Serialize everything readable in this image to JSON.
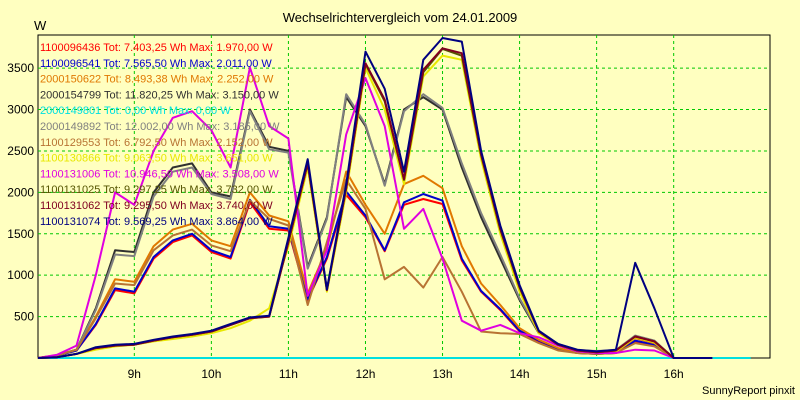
{
  "chart_data": {
    "type": "line",
    "title": "Wechselrichtervergleich vom 24.01.2009",
    "ylabel": "W",
    "xlabel": "",
    "credit": "SunnyReport pinxit",
    "grid": true,
    "legend_position": "top-left",
    "ylim": [
      0,
      3900
    ],
    "xlim": [
      7.75,
      17.25
    ],
    "yticks": [
      500,
      1000,
      1500,
      2000,
      2500,
      3000,
      3500
    ],
    "xticks": [
      9,
      10,
      11,
      12,
      13,
      14,
      15,
      16
    ],
    "xticklabels": [
      "9h",
      "10h",
      "11h",
      "12h",
      "13h",
      "14h",
      "15h",
      "16h"
    ],
    "x": [
      7.75,
      8.0,
      8.25,
      8.5,
      8.75,
      9.0,
      9.25,
      9.5,
      9.75,
      10.0,
      10.25,
      10.5,
      10.75,
      11.0,
      11.25,
      11.5,
      11.75,
      12.0,
      12.25,
      12.5,
      12.75,
      13.0,
      13.25,
      13.5,
      13.75,
      14.0,
      14.25,
      14.5,
      14.75,
      15.0,
      15.25,
      15.5,
      15.75,
      16.0,
      16.25,
      16.5,
      16.75,
      17.0
    ],
    "series": [
      {
        "name": "1100096436 Tot: 7.403,25 Wh Max: 1.970,00 W",
        "color": "#ff0000",
        "values": [
          0,
          30,
          90,
          400,
          820,
          780,
          1200,
          1400,
          1480,
          1280,
          1200,
          1880,
          1560,
          1540,
          700,
          1200,
          1970,
          1700,
          1290,
          1850,
          1920,
          1860,
          1180,
          800,
          580,
          320,
          200,
          100,
          60,
          50,
          60,
          200,
          150,
          0,
          0,
          0,
          null,
          null
        ]
      },
      {
        "name": "1100096541 Tot: 7.565,50 Wh Max: 2.011,00 W",
        "color": "#0000cc",
        "values": [
          0,
          30,
          90,
          410,
          840,
          800,
          1220,
          1420,
          1500,
          1300,
          1220,
          1910,
          1590,
          1560,
          710,
          1220,
          2011,
          1720,
          1300,
          1880,
          1980,
          1900,
          1200,
          810,
          590,
          330,
          210,
          110,
          60,
          50,
          60,
          210,
          160,
          0,
          0,
          0,
          null,
          null
        ]
      },
      {
        "name": "2000150622 Tot: 8.493,38 Wh Max: 2.252,00 W",
        "color": "#e07800",
        "values": [
          0,
          35,
          100,
          500,
          950,
          920,
          1350,
          1550,
          1620,
          1420,
          1350,
          2000,
          1720,
          1650,
          780,
          1320,
          2252,
          1850,
          1500,
          2100,
          2200,
          2050,
          1350,
          900,
          640,
          360,
          220,
          120,
          70,
          60,
          70,
          240,
          180,
          0,
          0,
          0,
          null,
          null
        ]
      },
      {
        "name": "2000154799 Tot: 11.820,25 Wh Max: 3.150,00 W",
        "color": "#303030",
        "values": [
          0,
          30,
          100,
          600,
          1300,
          1280,
          2000,
          2300,
          2350,
          2000,
          1950,
          3000,
          2550,
          2500,
          1100,
          1700,
          3150,
          2800,
          2100,
          3000,
          3150,
          3000,
          2300,
          1700,
          1200,
          700,
          300,
          160,
          90,
          80,
          90,
          260,
          200,
          0,
          0,
          0,
          null,
          null
        ]
      },
      {
        "name": "2000149801 Tot: 0,00 Wh Max: 0,00 W",
        "color": "#00e0e0",
        "values": [
          0,
          0,
          0,
          0,
          0,
          0,
          0,
          0,
          0,
          0,
          0,
          0,
          0,
          0,
          0,
          0,
          0,
          0,
          0,
          0,
          0,
          0,
          0,
          0,
          0,
          0,
          0,
          0,
          0,
          0,
          0,
          0,
          0,
          0,
          0,
          0,
          0,
          0
        ]
      },
      {
        "name": "2000149892 Tot: 12.002,00 Wh Max: 3.185,00 W",
        "color": "#808080",
        "values": [
          0,
          30,
          100,
          580,
          1250,
          1230,
          1950,
          2250,
          2300,
          1980,
          1920,
          2980,
          2520,
          2480,
          1080,
          1680,
          3185,
          2820,
          2080,
          2980,
          3185,
          3020,
          2350,
          1750,
          1250,
          720,
          310,
          170,
          95,
          85,
          95,
          270,
          210,
          0,
          0,
          0,
          null,
          null
        ]
      },
      {
        "name": "1100129553 Tot: 6.792,50 Wh Max: 2.152,00 W",
        "color": "#b87333",
        "values": [
          0,
          35,
          100,
          480,
          900,
          880,
          1300,
          1480,
          1550,
          1360,
          1290,
          1900,
          1680,
          1600,
          640,
          1400,
          2152,
          1800,
          950,
          1100,
          850,
          1220,
          800,
          320,
          300,
          290,
          180,
          90,
          60,
          50,
          60,
          180,
          140,
          0,
          0,
          0,
          null,
          null
        ]
      },
      {
        "name": "1100130866 Tot: 9.063,50 Wh Max: 3.651,00 W",
        "color": "#e8e800",
        "values": [
          0,
          10,
          50,
          100,
          140,
          160,
          200,
          230,
          260,
          300,
          360,
          450,
          600,
          1350,
          2300,
          800,
          2000,
          3500,
          3000,
          2100,
          3400,
          3651,
          3600,
          2400,
          1500,
          800,
          300,
          150,
          80,
          60,
          80,
          250,
          190,
          0,
          0,
          0,
          null,
          null
        ]
      },
      {
        "name": "1100131006 Tot: 10.946,50 Wh Max: 3.508,00 W",
        "color": "#e000e0",
        "values": [
          0,
          40,
          150,
          1000,
          2000,
          1850,
          2500,
          2900,
          2980,
          2750,
          2300,
          3508,
          2800,
          2650,
          750,
          1300,
          2700,
          3380,
          2800,
          1560,
          1800,
          1200,
          450,
          330,
          400,
          300,
          250,
          150,
          80,
          60,
          60,
          100,
          90,
          0,
          0,
          0,
          null,
          null
        ]
      },
      {
        "name": "1100131025 Tot: 9.297,25 Wh Max: 3.732,00 W",
        "color": "#555500",
        "values": [
          0,
          10,
          50,
          120,
          150,
          160,
          210,
          250,
          280,
          320,
          400,
          480,
          500,
          1400,
          2350,
          820,
          2050,
          3550,
          3100,
          2150,
          3450,
          3732,
          3650,
          2450,
          1550,
          850,
          320,
          160,
          90,
          70,
          90,
          260,
          200,
          0,
          0,
          0,
          null,
          null
        ]
      },
      {
        "name": "1100131062 Tot: 9.295,50 Wh Max: 3.740,00 W",
        "color": "#800020",
        "values": [
          0,
          10,
          50,
          120,
          150,
          160,
          210,
          250,
          280,
          320,
          400,
          480,
          500,
          1400,
          2350,
          820,
          2050,
          3560,
          3120,
          2160,
          3480,
          3740,
          3680,
          2460,
          1560,
          860,
          320,
          160,
          90,
          70,
          90,
          260,
          200,
          0,
          0,
          0,
          null,
          null
        ]
      },
      {
        "name": "1100131074 Tot: 9.569,25 Wh Max: 3.864,00 W",
        "color": "#000080",
        "values": [
          0,
          10,
          50,
          130,
          160,
          170,
          220,
          260,
          290,
          330,
          410,
          490,
          510,
          1450,
          2400,
          830,
          2100,
          3700,
          3250,
          2250,
          3600,
          3864,
          3820,
          2500,
          1600,
          880,
          330,
          170,
          100,
          80,
          100,
          1150,
          600,
          0,
          0,
          0,
          null,
          null
        ]
      }
    ]
  }
}
